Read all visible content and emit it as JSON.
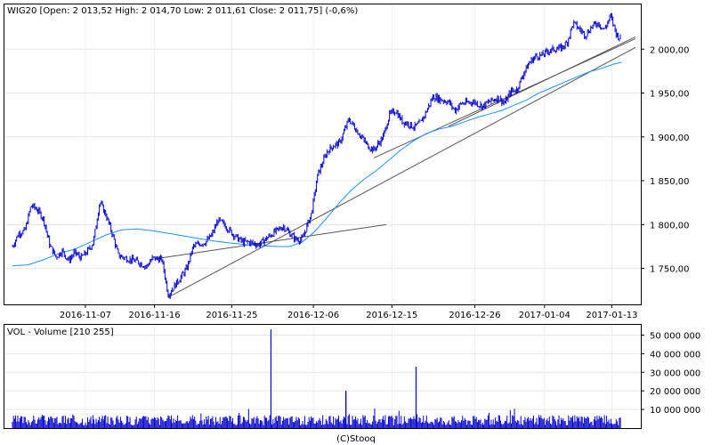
{
  "chart_data": [
    {
      "type": "candlestick",
      "title": "WIG20 [Open: 2 013,52  High: 2 014,70  Low: 2 011,61  Close: 2 011,75] (-0,6%)",
      "ylim": [
        1710,
        2050
      ],
      "y_ticks": [
        1750,
        1800,
        1850,
        1900,
        1950,
        2000
      ],
      "y_tick_labels": [
        "1 750,00",
        "1 800,00",
        "1 850,00",
        "1 900,00",
        "1 950,00",
        "2 000,00"
      ],
      "x_range": [
        0,
        1000
      ],
      "x_ticks": [
        {
          "x": 117,
          "label": "2016-11-07"
        },
        {
          "x": 228,
          "label": "2016-11-16"
        },
        {
          "x": 352,
          "label": "2016-11-25"
        },
        {
          "x": 483,
          "label": "2016-12-06"
        },
        {
          "x": 609,
          "label": "2016-12-15"
        },
        {
          "x": 742,
          "label": "2016-12-26"
        },
        {
          "x": 854,
          "label": "2017-01-04"
        },
        {
          "x": 962,
          "label": "2017-01-13"
        }
      ],
      "price_path": [
        [
          0,
          1775
        ],
        [
          10,
          1790
        ],
        [
          20,
          1793
        ],
        [
          30,
          1822
        ],
        [
          40,
          1817
        ],
        [
          50,
          1806
        ],
        [
          60,
          1776
        ],
        [
          70,
          1763
        ],
        [
          80,
          1770
        ],
        [
          90,
          1759
        ],
        [
          100,
          1768
        ],
        [
          110,
          1762
        ],
        [
          120,
          1769
        ],
        [
          130,
          1780
        ],
        [
          140,
          1826
        ],
        [
          150,
          1811
        ],
        [
          160,
          1790
        ],
        [
          170,
          1765
        ],
        [
          180,
          1762
        ],
        [
          190,
          1760
        ],
        [
          200,
          1758
        ],
        [
          215,
          1752
        ],
        [
          225,
          1762
        ],
        [
          240,
          1760
        ],
        [
          250,
          1720
        ],
        [
          260,
          1730
        ],
        [
          270,
          1740
        ],
        [
          280,
          1750
        ],
        [
          290,
          1775
        ],
        [
          300,
          1778
        ],
        [
          310,
          1780
        ],
        [
          320,
          1788
        ],
        [
          330,
          1805
        ],
        [
          340,
          1800
        ],
        [
          350,
          1792
        ],
        [
          360,
          1785
        ],
        [
          370,
          1780
        ],
        [
          380,
          1780
        ],
        [
          395,
          1777
        ],
        [
          420,
          1791
        ],
        [
          435,
          1798
        ],
        [
          445,
          1790
        ],
        [
          455,
          1783
        ],
        [
          465,
          1783
        ],
        [
          480,
          1813
        ],
        [
          490,
          1857
        ],
        [
          505,
          1883
        ],
        [
          515,
          1890
        ],
        [
          525,
          1893
        ],
        [
          540,
          1920
        ],
        [
          550,
          1910
        ],
        [
          560,
          1900
        ],
        [
          570,
          1890
        ],
        [
          580,
          1885
        ],
        [
          595,
          1900
        ],
        [
          605,
          1925
        ],
        [
          615,
          1930
        ],
        [
          625,
          1918
        ],
        [
          635,
          1915
        ],
        [
          645,
          1911
        ],
        [
          655,
          1916
        ],
        [
          665,
          1930
        ],
        [
          675,
          1946
        ],
        [
          690,
          1942
        ],
        [
          700,
          1940
        ],
        [
          710,
          1930
        ],
        [
          720,
          1938
        ],
        [
          740,
          1940
        ],
        [
          755,
          1935
        ],
        [
          765,
          1940
        ],
        [
          780,
          1945
        ],
        [
          790,
          1938
        ],
        [
          800,
          1952
        ],
        [
          810,
          1954
        ],
        [
          820,
          1972
        ],
        [
          830,
          1985
        ],
        [
          840,
          1992
        ],
        [
          850,
          1993
        ],
        [
          860,
          1998
        ],
        [
          870,
          2000
        ],
        [
          880,
          2001
        ],
        [
          890,
          2007
        ],
        [
          900,
          2030
        ],
        [
          910,
          2023
        ],
        [
          920,
          2016
        ],
        [
          930,
          2026
        ],
        [
          940,
          2030
        ],
        [
          950,
          2022
        ],
        [
          960,
          2038
        ],
        [
          970,
          2016
        ],
        [
          977,
          2012
        ]
      ],
      "moving_average": [
        [
          0,
          1753
        ],
        [
          25,
          1754
        ],
        [
          50,
          1760
        ],
        [
          75,
          1767
        ],
        [
          100,
          1772
        ],
        [
          125,
          1780
        ],
        [
          150,
          1788
        ],
        [
          175,
          1794
        ],
        [
          200,
          1795
        ],
        [
          225,
          1793
        ],
        [
          250,
          1790
        ],
        [
          275,
          1787
        ],
        [
          300,
          1784
        ],
        [
          325,
          1781
        ],
        [
          350,
          1779
        ],
        [
          375,
          1777
        ],
        [
          400,
          1776
        ],
        [
          425,
          1775
        ],
        [
          445,
          1775
        ],
        [
          465,
          1780
        ],
        [
          485,
          1792
        ],
        [
          505,
          1808
        ],
        [
          525,
          1825
        ],
        [
          545,
          1840
        ],
        [
          565,
          1852
        ],
        [
          585,
          1862
        ],
        [
          605,
          1874
        ],
        [
          625,
          1886
        ],
        [
          645,
          1896
        ],
        [
          665,
          1904
        ],
        [
          685,
          1909
        ],
        [
          705,
          1912
        ],
        [
          725,
          1917
        ],
        [
          745,
          1922
        ],
        [
          765,
          1926
        ],
        [
          785,
          1930
        ],
        [
          805,
          1936
        ],
        [
          825,
          1942
        ],
        [
          845,
          1950
        ],
        [
          865,
          1956
        ],
        [
          885,
          1962
        ],
        [
          905,
          1968
        ],
        [
          925,
          1974
        ],
        [
          945,
          1978
        ],
        [
          965,
          1983
        ],
        [
          978,
          1985
        ]
      ],
      "trendlines": [
        {
          "x1": 250,
          "y1": 1717,
          "x2": 1000,
          "y2": 2002
        },
        {
          "x1": 580,
          "y1": 1876,
          "x2": 1000,
          "y2": 2012
        },
        {
          "x1": 700,
          "y1": 1912,
          "x2": 1000,
          "y2": 2014
        },
        {
          "x1": 220,
          "y1": 1760,
          "x2": 600,
          "y2": 1800
        }
      ]
    },
    {
      "type": "bar",
      "title": "VOL - Volume [210 255]",
      "ylim": [
        0,
        55000000
      ],
      "y_ticks": [
        10000000,
        20000000,
        30000000,
        40000000,
        50000000
      ],
      "y_tick_labels": [
        "10 000 000",
        "20 000 000",
        "30 000 000",
        "40 000 000",
        "50 000 000"
      ],
      "x_range": [
        0,
        1000
      ],
      "spikes": [
        {
          "x": 415,
          "v": 53000000
        },
        {
          "x": 535,
          "v": 20000000
        },
        {
          "x": 648,
          "v": 33000000
        }
      ]
    }
  ],
  "footer": "(C)Stooq"
}
